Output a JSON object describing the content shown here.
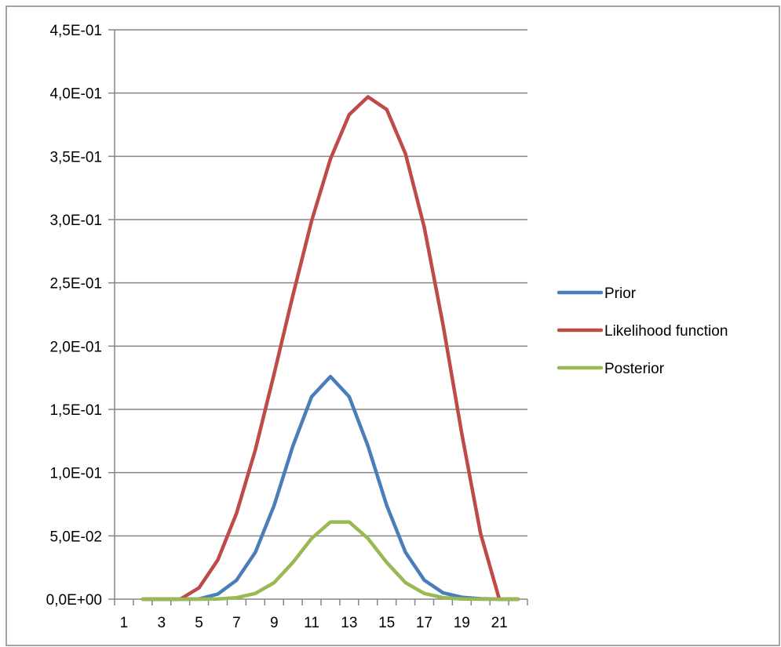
{
  "chart_data": {
    "type": "line",
    "title": "",
    "xlabel": "",
    "ylabel": "",
    "x": [
      1,
      2,
      3,
      4,
      5,
      6,
      7,
      8,
      9,
      10,
      11,
      12,
      13,
      14,
      15,
      16,
      17,
      18,
      19,
      20,
      21,
      22
    ],
    "x_tick_labels": [
      "1",
      "3",
      "5",
      "7",
      "9",
      "11",
      "13",
      "15",
      "17",
      "19",
      "21"
    ],
    "y_tick_labels": [
      "0,0E+00",
      "5,0E-02",
      "1,0E-01",
      "1,5E-01",
      "2,0E-01",
      "2,5E-01",
      "3,0E-01",
      "3,5E-01",
      "4,0E-01",
      "4,5E-01"
    ],
    "ylim": [
      0,
      0.45
    ],
    "grid": "horizontal",
    "legend_position": "right",
    "series": [
      {
        "name": "Prior",
        "color": "#4a7ebb",
        "x": [
          2,
          3,
          4,
          5,
          6,
          7,
          8,
          9,
          10,
          11,
          12,
          13,
          14,
          15,
          16,
          17,
          18,
          19,
          20,
          21,
          22
        ],
        "values": [
          0.0,
          0.0,
          0.0,
          0.0002,
          0.004,
          0.015,
          0.037,
          0.074,
          0.121,
          0.16,
          0.176,
          0.16,
          0.121,
          0.074,
          0.037,
          0.015,
          0.005,
          0.0015,
          0.0003,
          0.0,
          0.0
        ]
      },
      {
        "name": "Likelihood function",
        "color": "#be4b48",
        "x": [
          2,
          3,
          4,
          5,
          6,
          7,
          8,
          9,
          10,
          11,
          12,
          13,
          14,
          15,
          16,
          17,
          18,
          19,
          20,
          21,
          22
        ],
        "values": [
          0.0,
          0.0,
          0.0,
          0.009,
          0.031,
          0.068,
          0.118,
          0.178,
          0.24,
          0.299,
          0.348,
          0.383,
          0.397,
          0.387,
          0.352,
          0.294,
          0.217,
          0.131,
          0.052,
          0.0,
          0.0
        ]
      },
      {
        "name": "Posterior",
        "color": "#98b954",
        "x": [
          2,
          3,
          4,
          5,
          6,
          7,
          8,
          9,
          10,
          11,
          12,
          13,
          14,
          15,
          16,
          17,
          18,
          19,
          20,
          21,
          22
        ],
        "values": [
          0.0,
          0.0,
          0.0,
          0.0,
          0.0002,
          0.0012,
          0.0045,
          0.013,
          0.029,
          0.048,
          0.061,
          0.061,
          0.048,
          0.029,
          0.013,
          0.0045,
          0.0012,
          0.0002,
          0.0,
          0.0,
          0.0
        ]
      }
    ]
  }
}
